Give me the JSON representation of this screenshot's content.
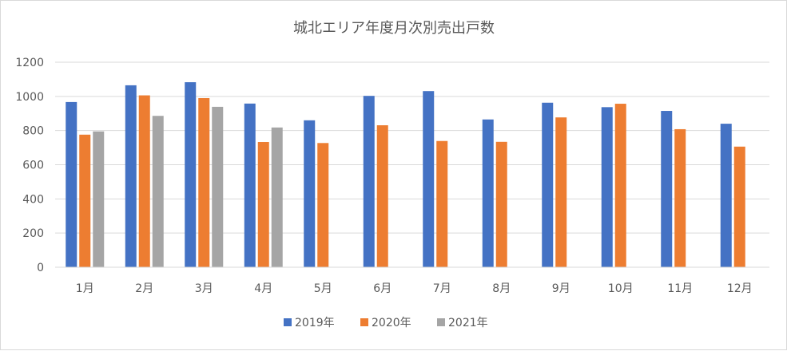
{
  "chart_data": {
    "type": "bar",
    "title": "城北エリア年度月次別売出戸数",
    "xlabel": "",
    "ylabel": "",
    "ylim": [
      0,
      1200
    ],
    "yticks": [
      0,
      200,
      400,
      600,
      800,
      1000,
      1200
    ],
    "grid": true,
    "legend_position": "bottom",
    "categories": [
      "1月",
      "2月",
      "3月",
      "4月",
      "5月",
      "6月",
      "7月",
      "8月",
      "9月",
      "10月",
      "11月",
      "12月"
    ],
    "series": [
      {
        "name": "2019年",
        "color": "#4472c4",
        "values": [
          967,
          1065,
          1083,
          958,
          860,
          1003,
          1031,
          865,
          963,
          937,
          915,
          840
        ]
      },
      {
        "name": "2020年",
        "color": "#ed7d31",
        "values": [
          776,
          1006,
          990,
          733,
          727,
          831,
          739,
          734,
          877,
          957,
          808,
          706
        ]
      },
      {
        "name": "2021年",
        "color": "#a5a5a5",
        "values": [
          795,
          886,
          939,
          818,
          null,
          null,
          null,
          null,
          null,
          null,
          null,
          null
        ]
      }
    ]
  }
}
